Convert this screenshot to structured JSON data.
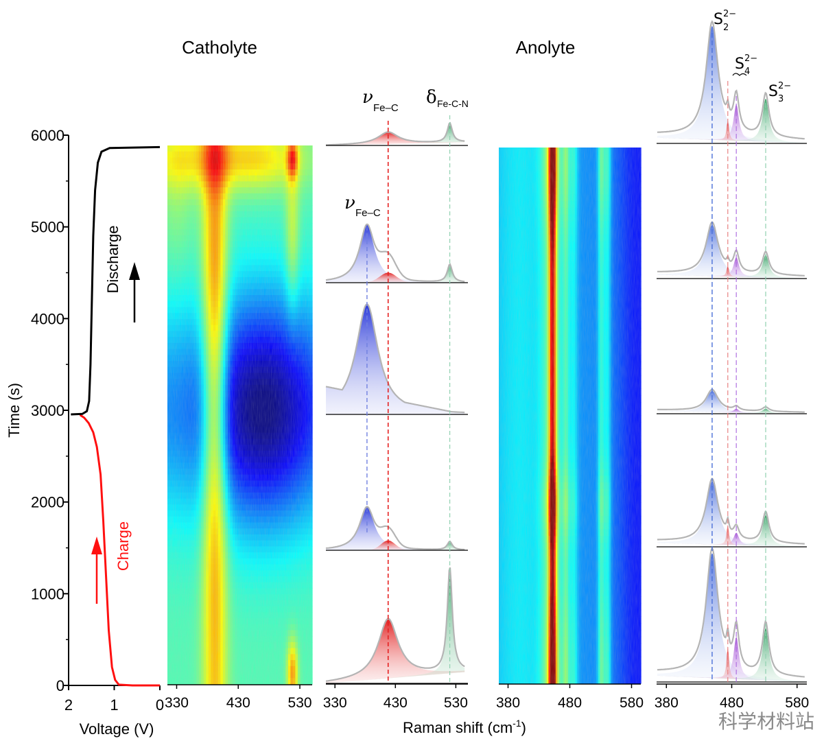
{
  "titles": {
    "catholyte": "Catholyte",
    "anolyte": "Anolyte"
  },
  "xlabels": {
    "voltage": "Voltage (V)",
    "raman": "Raman shift (cm",
    "raman_sup": "-1",
    "raman_close": ")"
  },
  "ylabel": "Time (s)",
  "charge_label": "Charge",
  "discharge_label": "Discharge",
  "peak_labels": {
    "nu": "ν",
    "fe_c": "Fe–C",
    "delta": "δ",
    "fe_c_n": "Fe-C-N",
    "s": "S",
    "s2_sub": "2",
    "s4_sub": "4",
    "s3_sub": "3",
    "sup": "2−"
  },
  "watermark": "科学材料站",
  "chart_data": [
    {
      "type": "line",
      "xlabel": "Voltage (V)",
      "ylabel": "Time (s)",
      "xlim": [
        2,
        0
      ],
      "ylim": [
        0,
        6000
      ],
      "xticks": [
        "2",
        "1",
        "0"
      ],
      "yticks": [
        "0",
        "1000",
        "2000",
        "3000",
        "4000",
        "5000",
        "6000"
      ],
      "series": [
        {
          "name": "Charge",
          "color": "#ff1010",
          "points": [
            [
              0.0,
              0
            ],
            [
              0.6,
              0
            ],
            [
              0.9,
              8
            ],
            [
              0.98,
              60
            ],
            [
              1.05,
              200
            ],
            [
              1.12,
              600
            ],
            [
              1.18,
              1200
            ],
            [
              1.24,
              1800
            ],
            [
              1.3,
              2300
            ],
            [
              1.38,
              2600
            ],
            [
              1.46,
              2760
            ],
            [
              1.56,
              2860
            ],
            [
              1.66,
              2920
            ],
            [
              1.75,
              2950
            ]
          ]
        },
        {
          "name": "Discharge",
          "color": "#000000",
          "points": [
            [
              1.95,
              2955
            ],
            [
              1.7,
              2960
            ],
            [
              1.6,
              2990
            ],
            [
              1.55,
              3100
            ],
            [
              1.52,
              3500
            ],
            [
              1.49,
              4200
            ],
            [
              1.46,
              4900
            ],
            [
              1.42,
              5400
            ],
            [
              1.36,
              5700
            ],
            [
              1.28,
              5820
            ],
            [
              1.1,
              5860
            ],
            [
              0.0,
              5870
            ]
          ]
        }
      ]
    },
    {
      "type": "heatmap",
      "name": "Catholyte",
      "xlabel": "Raman shift (cm-1)",
      "xlim": [
        315,
        550
      ],
      "ylim": [
        0,
        6000
      ],
      "xticks": [
        330,
        430,
        530
      ],
      "colormap": "jet",
      "ridges": [
        392,
        518
      ],
      "ridge_peak_times": [
        3100,
        5850,
        0
      ]
    },
    {
      "type": "line",
      "name": "Catholyte spectra",
      "xlim": [
        315,
        550
      ],
      "xticks": [
        330,
        430,
        530
      ],
      "peaks": {
        "fe_c_blue": 383,
        "fe_c_red": 418,
        "fe_c_n": 520
      },
      "panels": [
        {
          "blue_height": 0,
          "red_height": 0.28,
          "green_height": 0.45
        },
        {
          "blue_height": 0.52,
          "red_height": 0.0,
          "green_height": 0.16
        },
        {
          "blue_height": 0.98,
          "red_height": 0.0,
          "green_height": 0.0
        },
        {
          "blue_height": 0.62,
          "red_height": 0.0,
          "green_height": 0.12
        },
        {
          "blue_height": 0,
          "red_height": 0.42,
          "green_height": 0.74
        }
      ]
    },
    {
      "type": "heatmap",
      "name": "Anolyte",
      "xlabel": "Raman shift (cm-1)",
      "xlim": [
        365,
        595
      ],
      "ylim": [
        0,
        6000
      ],
      "xticks": [
        380,
        480,
        580
      ],
      "colormap": "jet",
      "ridges": [
        452,
        473,
        485,
        530,
        540
      ]
    },
    {
      "type": "line",
      "name": "Anolyte spectra",
      "xlim": [
        365,
        595
      ],
      "xticks": [
        380,
        480,
        580
      ],
      "peaks": {
        "S2": 450,
        "S4a": 474,
        "S4b": 487,
        "S3": 532
      },
      "panels": [
        {
          "s2": 1.0,
          "s4a": 0.18,
          "s4b": 0.32,
          "s3": 0.38
        },
        {
          "s2": 0.68,
          "s4a": 0.14,
          "s4b": 0.26,
          "s3": 0.3
        },
        {
          "s2": 0.44,
          "s4a": 0.0,
          "s4b": 0.08,
          "s3": 0.09
        },
        {
          "s2": 0.82,
          "s4a": 0.26,
          "s4b": 0.16,
          "s3": 0.4
        },
        {
          "s2": 1.0,
          "s4a": 0.26,
          "s4b": 0.34,
          "s3": 0.42
        }
      ]
    }
  ]
}
